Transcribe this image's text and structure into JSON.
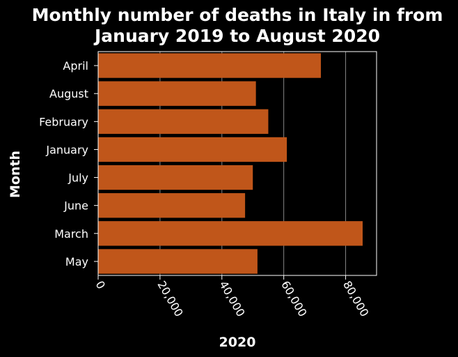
{
  "chart_data": {
    "type": "bar",
    "orientation": "horizontal",
    "title_lines": [
      "Monthly number of deaths in Italy in from",
      "January 2019 to August 2020"
    ],
    "xlabel": "2020",
    "ylabel": "Month",
    "categories": [
      "April",
      "August",
      "February",
      "January",
      "July",
      "June",
      "March",
      "May"
    ],
    "values": [
      72000,
      51000,
      55000,
      61000,
      50000,
      47500,
      85500,
      51500
    ],
    "xlim": [
      0,
      90000
    ],
    "xticks": [
      0,
      20000,
      40000,
      60000,
      80000
    ],
    "xtick_labels": [
      "0",
      "20,000",
      "40,000",
      "60,000",
      "80,000"
    ],
    "grid": "vertical",
    "colors": {
      "bar": "#c0561a",
      "background": "#000000",
      "text": "#ffffff",
      "grid": "#888888"
    }
  }
}
